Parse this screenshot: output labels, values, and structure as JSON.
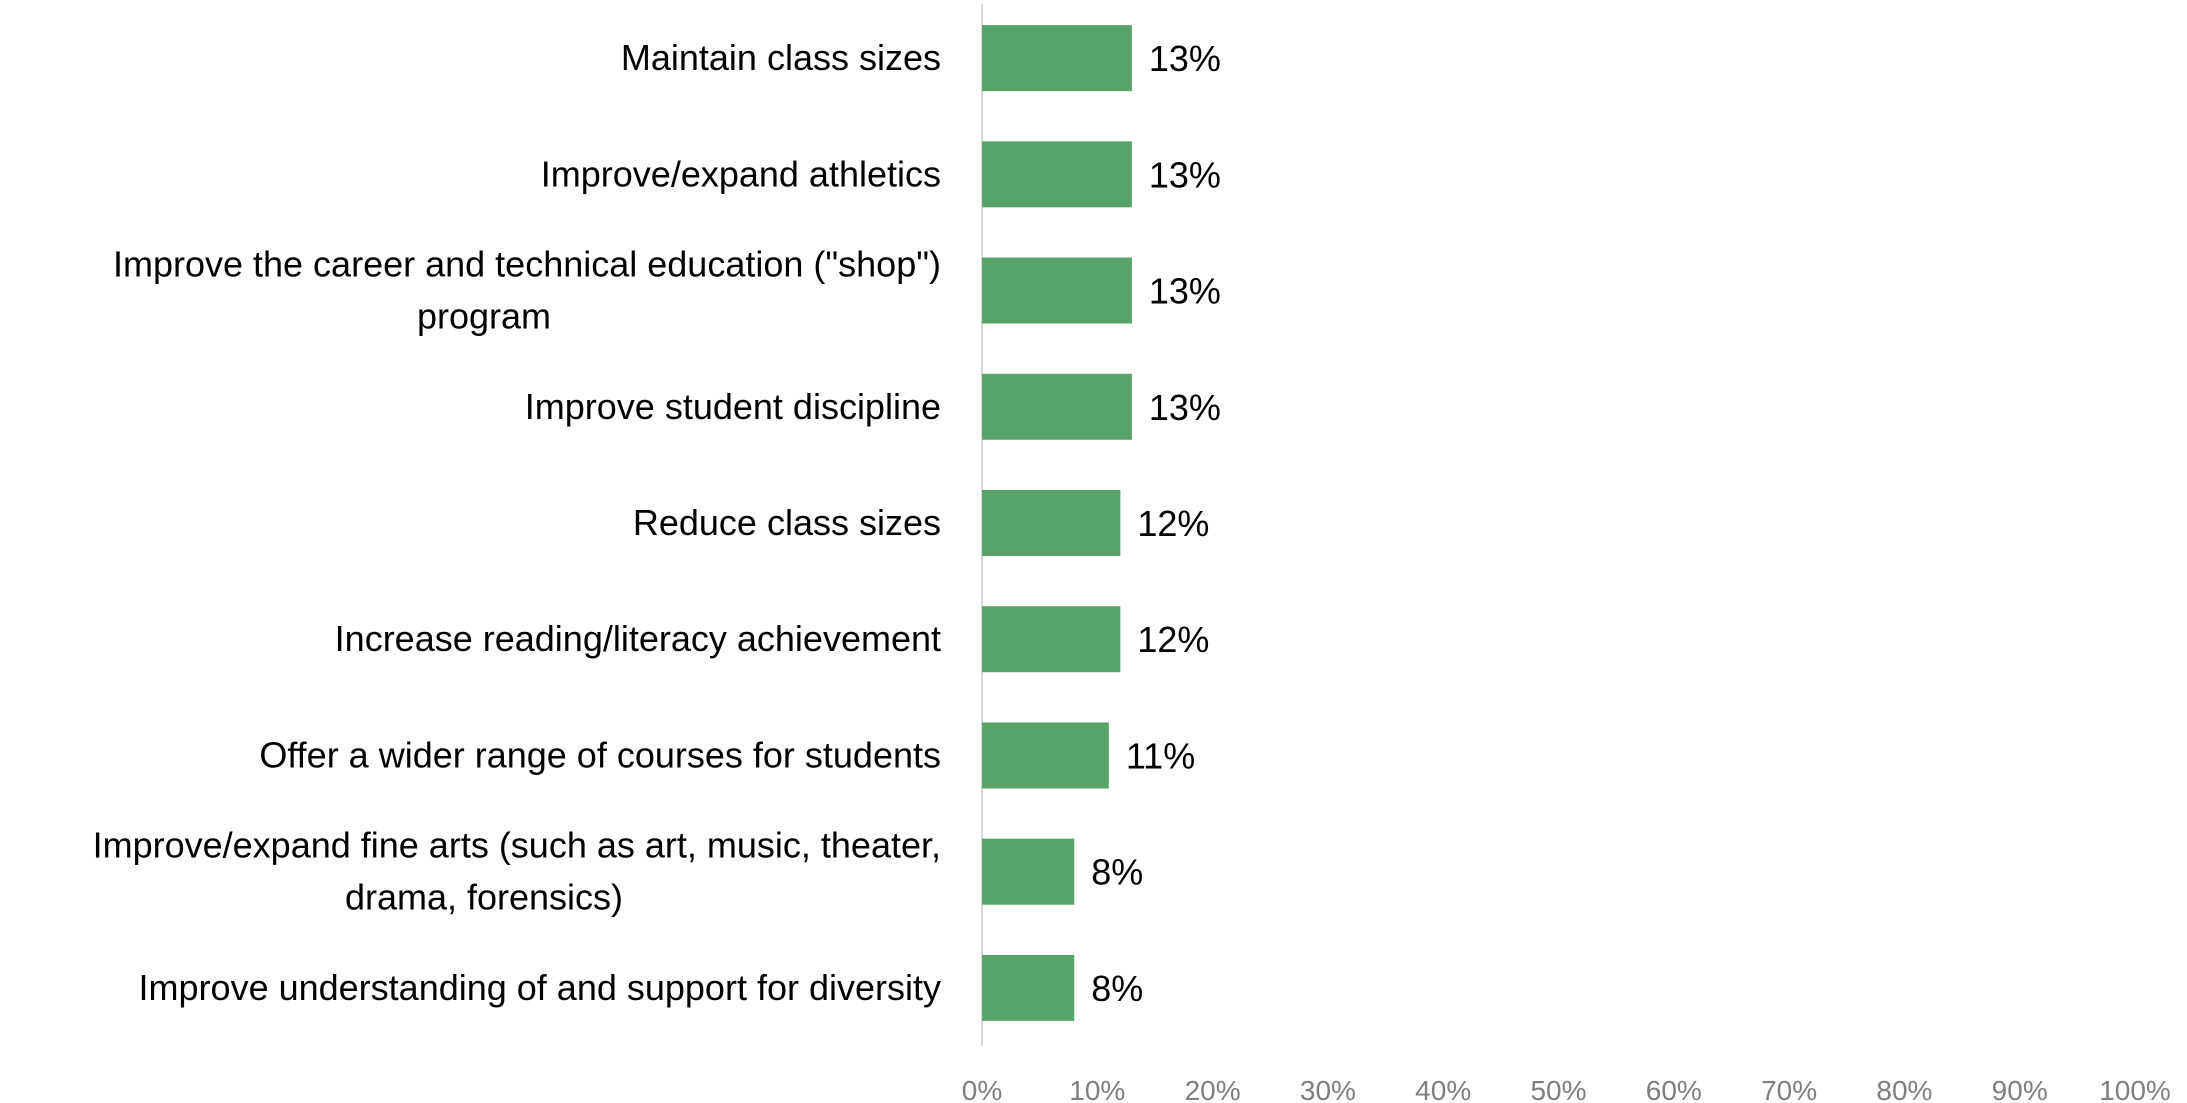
{
  "chart_data": {
    "type": "bar",
    "orientation": "horizontal",
    "categories": [
      "Maintain class sizes",
      "Improve/expand athletics",
      "Improve the career and technical education (\"shop\") program",
      "Improve student discipline",
      "Reduce class sizes",
      "Increase reading/literacy achievement",
      "Offer a wider range of courses for students",
      "Improve/expand fine arts (such as art, music, theater, drama, forensics)",
      "Improve understanding of and support for diversity"
    ],
    "category_lines": [
      [
        "Maintain class sizes"
      ],
      [
        "Improve/expand athletics"
      ],
      [
        "Improve the career and technical education (\"shop\")",
        "program"
      ],
      [
        "Improve student discipline"
      ],
      [
        "Reduce class sizes"
      ],
      [
        "Increase reading/literacy achievement"
      ],
      [
        "Offer a wider range of courses for students"
      ],
      [
        "Improve/expand fine arts (such as art, music, theater,",
        "drama, forensics)"
      ],
      [
        "Improve understanding of and support for diversity"
      ]
    ],
    "values": [
      13,
      13,
      13,
      13,
      12,
      12,
      11,
      8,
      8
    ],
    "data_labels": [
      "13%",
      "13%",
      "13%",
      "13%",
      "12%",
      "12%",
      "11%",
      "8%",
      "8%"
    ],
    "xlim": [
      0,
      100
    ],
    "xticks": [
      0,
      10,
      20,
      30,
      40,
      50,
      60,
      70,
      80,
      90,
      100
    ],
    "xtick_labels": [
      "0%",
      "10%",
      "20%",
      "30%",
      "40%",
      "50%",
      "60%",
      "70%",
      "80%",
      "90%",
      "100%"
    ],
    "grid": false,
    "legend": "none",
    "title": "",
    "xlabel": "",
    "ylabel": "",
    "bar_color": "#58a36a",
    "axis_color": "#d9d9d9",
    "tick_label_color": "#7f7f7f"
  }
}
